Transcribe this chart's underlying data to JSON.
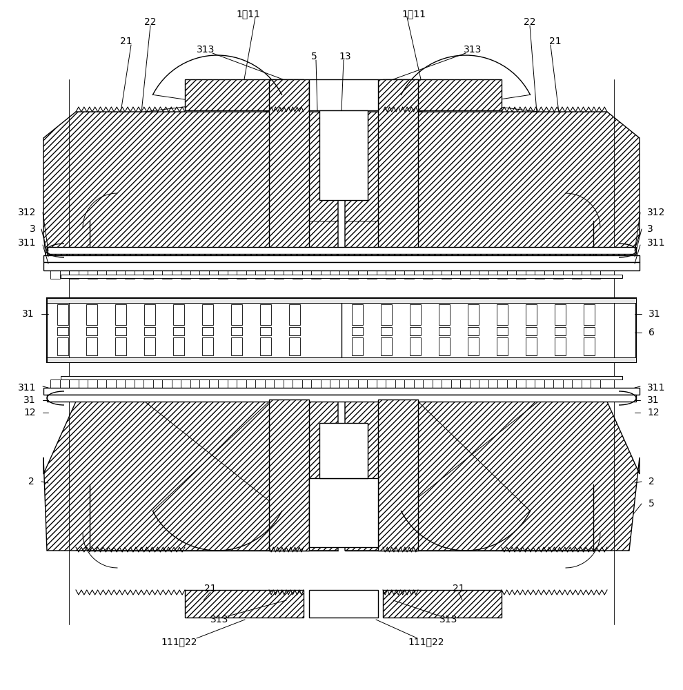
{
  "bg_color": "#ffffff",
  "fig_width": 9.9,
  "fig_height": 10.0,
  "dpi": 100
}
